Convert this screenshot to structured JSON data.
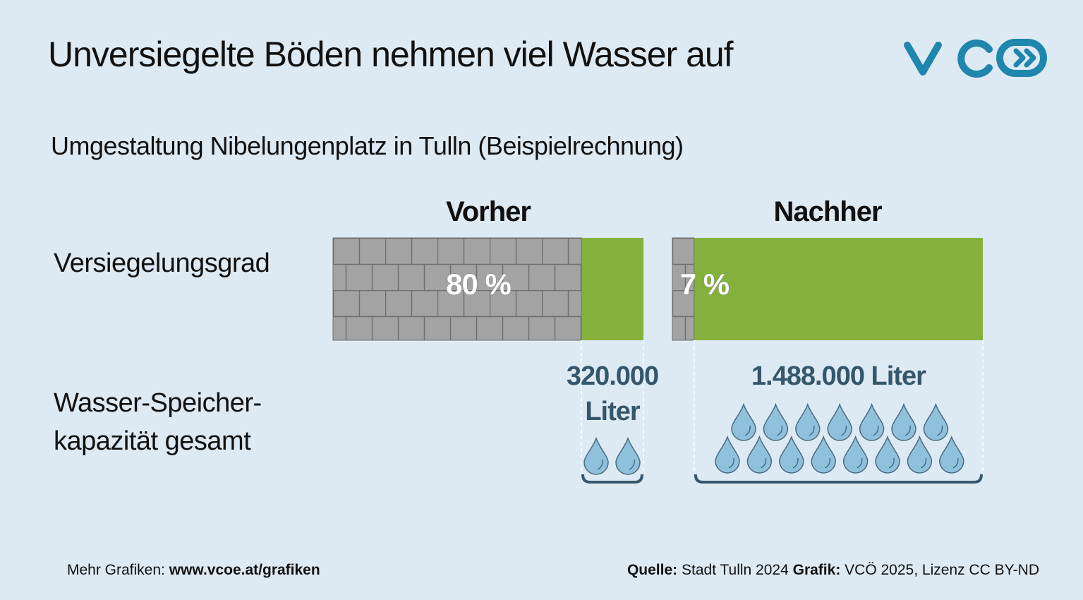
{
  "chart_data": {
    "type": "bar",
    "title": "Unversiegelte Böden nehmen viel Wasser auf",
    "subtitle": "Umgestaltung Nibelungenplatz in Tulln (Beispielrechnung)",
    "categories": [
      "Vorher",
      "Nachher"
    ],
    "row_label": "Versiegelungsgrad",
    "values": [
      80,
      7
    ],
    "value_labels": [
      "80 %",
      "7 %"
    ],
    "xlim": [
      0,
      100
    ],
    "colors": {
      "sealed": "#a3a3a3",
      "unsealed": "#84b13b"
    },
    "storage": {
      "label": "Wasser-Speicher-kapazität gesamt",
      "values": [
        320000,
        1488000
      ],
      "value_labels": [
        "320.000 Liter",
        "1.488.000 Liter"
      ]
    }
  },
  "footer": {
    "more_label": "Mehr Grafiken:",
    "more_url": "www.vcoe.at/grafiken",
    "source_label": "Quelle:",
    "source": "Stadt Tulln 2024",
    "graphic_label": "Grafik:",
    "graphic": "VCÖ 2025, Lizenz CC BY-ND"
  }
}
